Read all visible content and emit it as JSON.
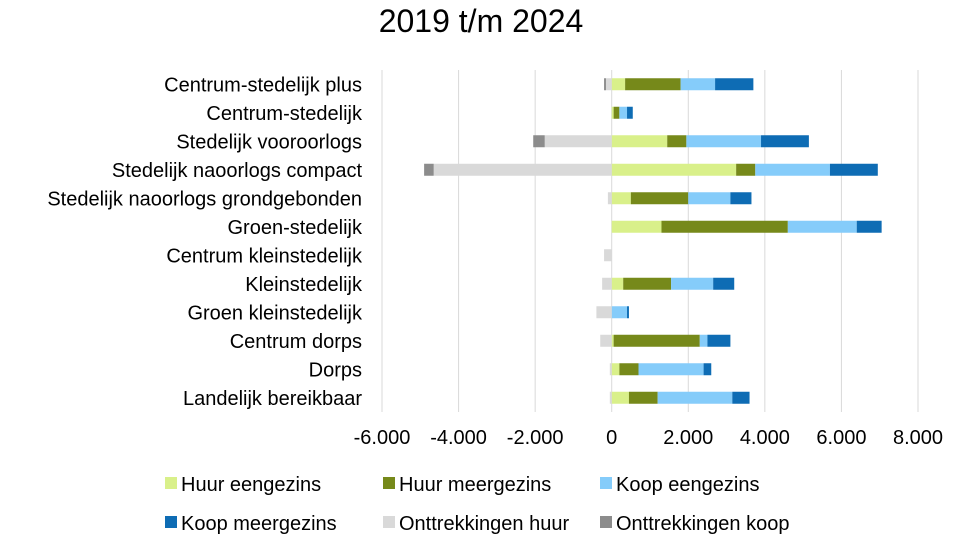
{
  "chart_data": {
    "type": "bar",
    "orientation": "horizontal",
    "stacked": true,
    "title": "2019 t/m 2024",
    "xlabel": "",
    "ylabel": "",
    "xlim": [
      -6000,
      8000
    ],
    "x_ticks": [
      -6000,
      -4000,
      -2000,
      0,
      2000,
      4000,
      6000,
      8000
    ],
    "x_tick_labels": [
      "-6.000",
      "-4.000",
      "-2.000",
      "0",
      "2.000",
      "4.000",
      "6.000",
      "8.000"
    ],
    "grid": true,
    "legend_position": "bottom",
    "categories": [
      "Centrum-stedelijk plus",
      "Centrum-stedelijk",
      "Stedelijk vooroorlogs",
      "Stedelijk naoorlogs compact",
      "Stedelijk naoorlogs grondgebonden",
      "Groen-stedelijk",
      "Centrum kleinstedelijk",
      "Kleinstedelijk",
      "Groen kleinstedelijk",
      "Centrum dorps",
      "Dorps",
      "Landelijk bereikbaar"
    ],
    "series": [
      {
        "name": "Huur eengezins",
        "color": "#d9f08a",
        "values": [
          350,
          50,
          1450,
          3250,
          500,
          1300,
          0,
          300,
          0,
          50,
          200,
          450
        ]
      },
      {
        "name": "Huur meergezins",
        "color": "#76891a",
        "values": [
          1450,
          150,
          500,
          500,
          1500,
          3300,
          0,
          1250,
          0,
          2250,
          500,
          750
        ]
      },
      {
        "name": "Koop eengezins",
        "color": "#85ccfa",
        "values": [
          900,
          200,
          1950,
          1950,
          1100,
          1800,
          0,
          1100,
          400,
          200,
          1700,
          1950
        ]
      },
      {
        "name": "Koop meergezins",
        "color": "#0e6cb4",
        "values": [
          1000,
          150,
          1250,
          1250,
          550,
          650,
          0,
          550,
          50,
          600,
          200,
          450
        ]
      },
      {
        "name": "Onttrekkingen huur",
        "color": "#d9d9d9",
        "values": [
          -150,
          0,
          -1750,
          -4650,
          -100,
          0,
          -200,
          -250,
          -400,
          -300,
          -50,
          -50
        ]
      },
      {
        "name": "Onttrekkingen koop",
        "color": "#8c8c8c",
        "values": [
          -50,
          0,
          -300,
          -250,
          0,
          0,
          0,
          0,
          0,
          0,
          0,
          0
        ]
      }
    ]
  }
}
